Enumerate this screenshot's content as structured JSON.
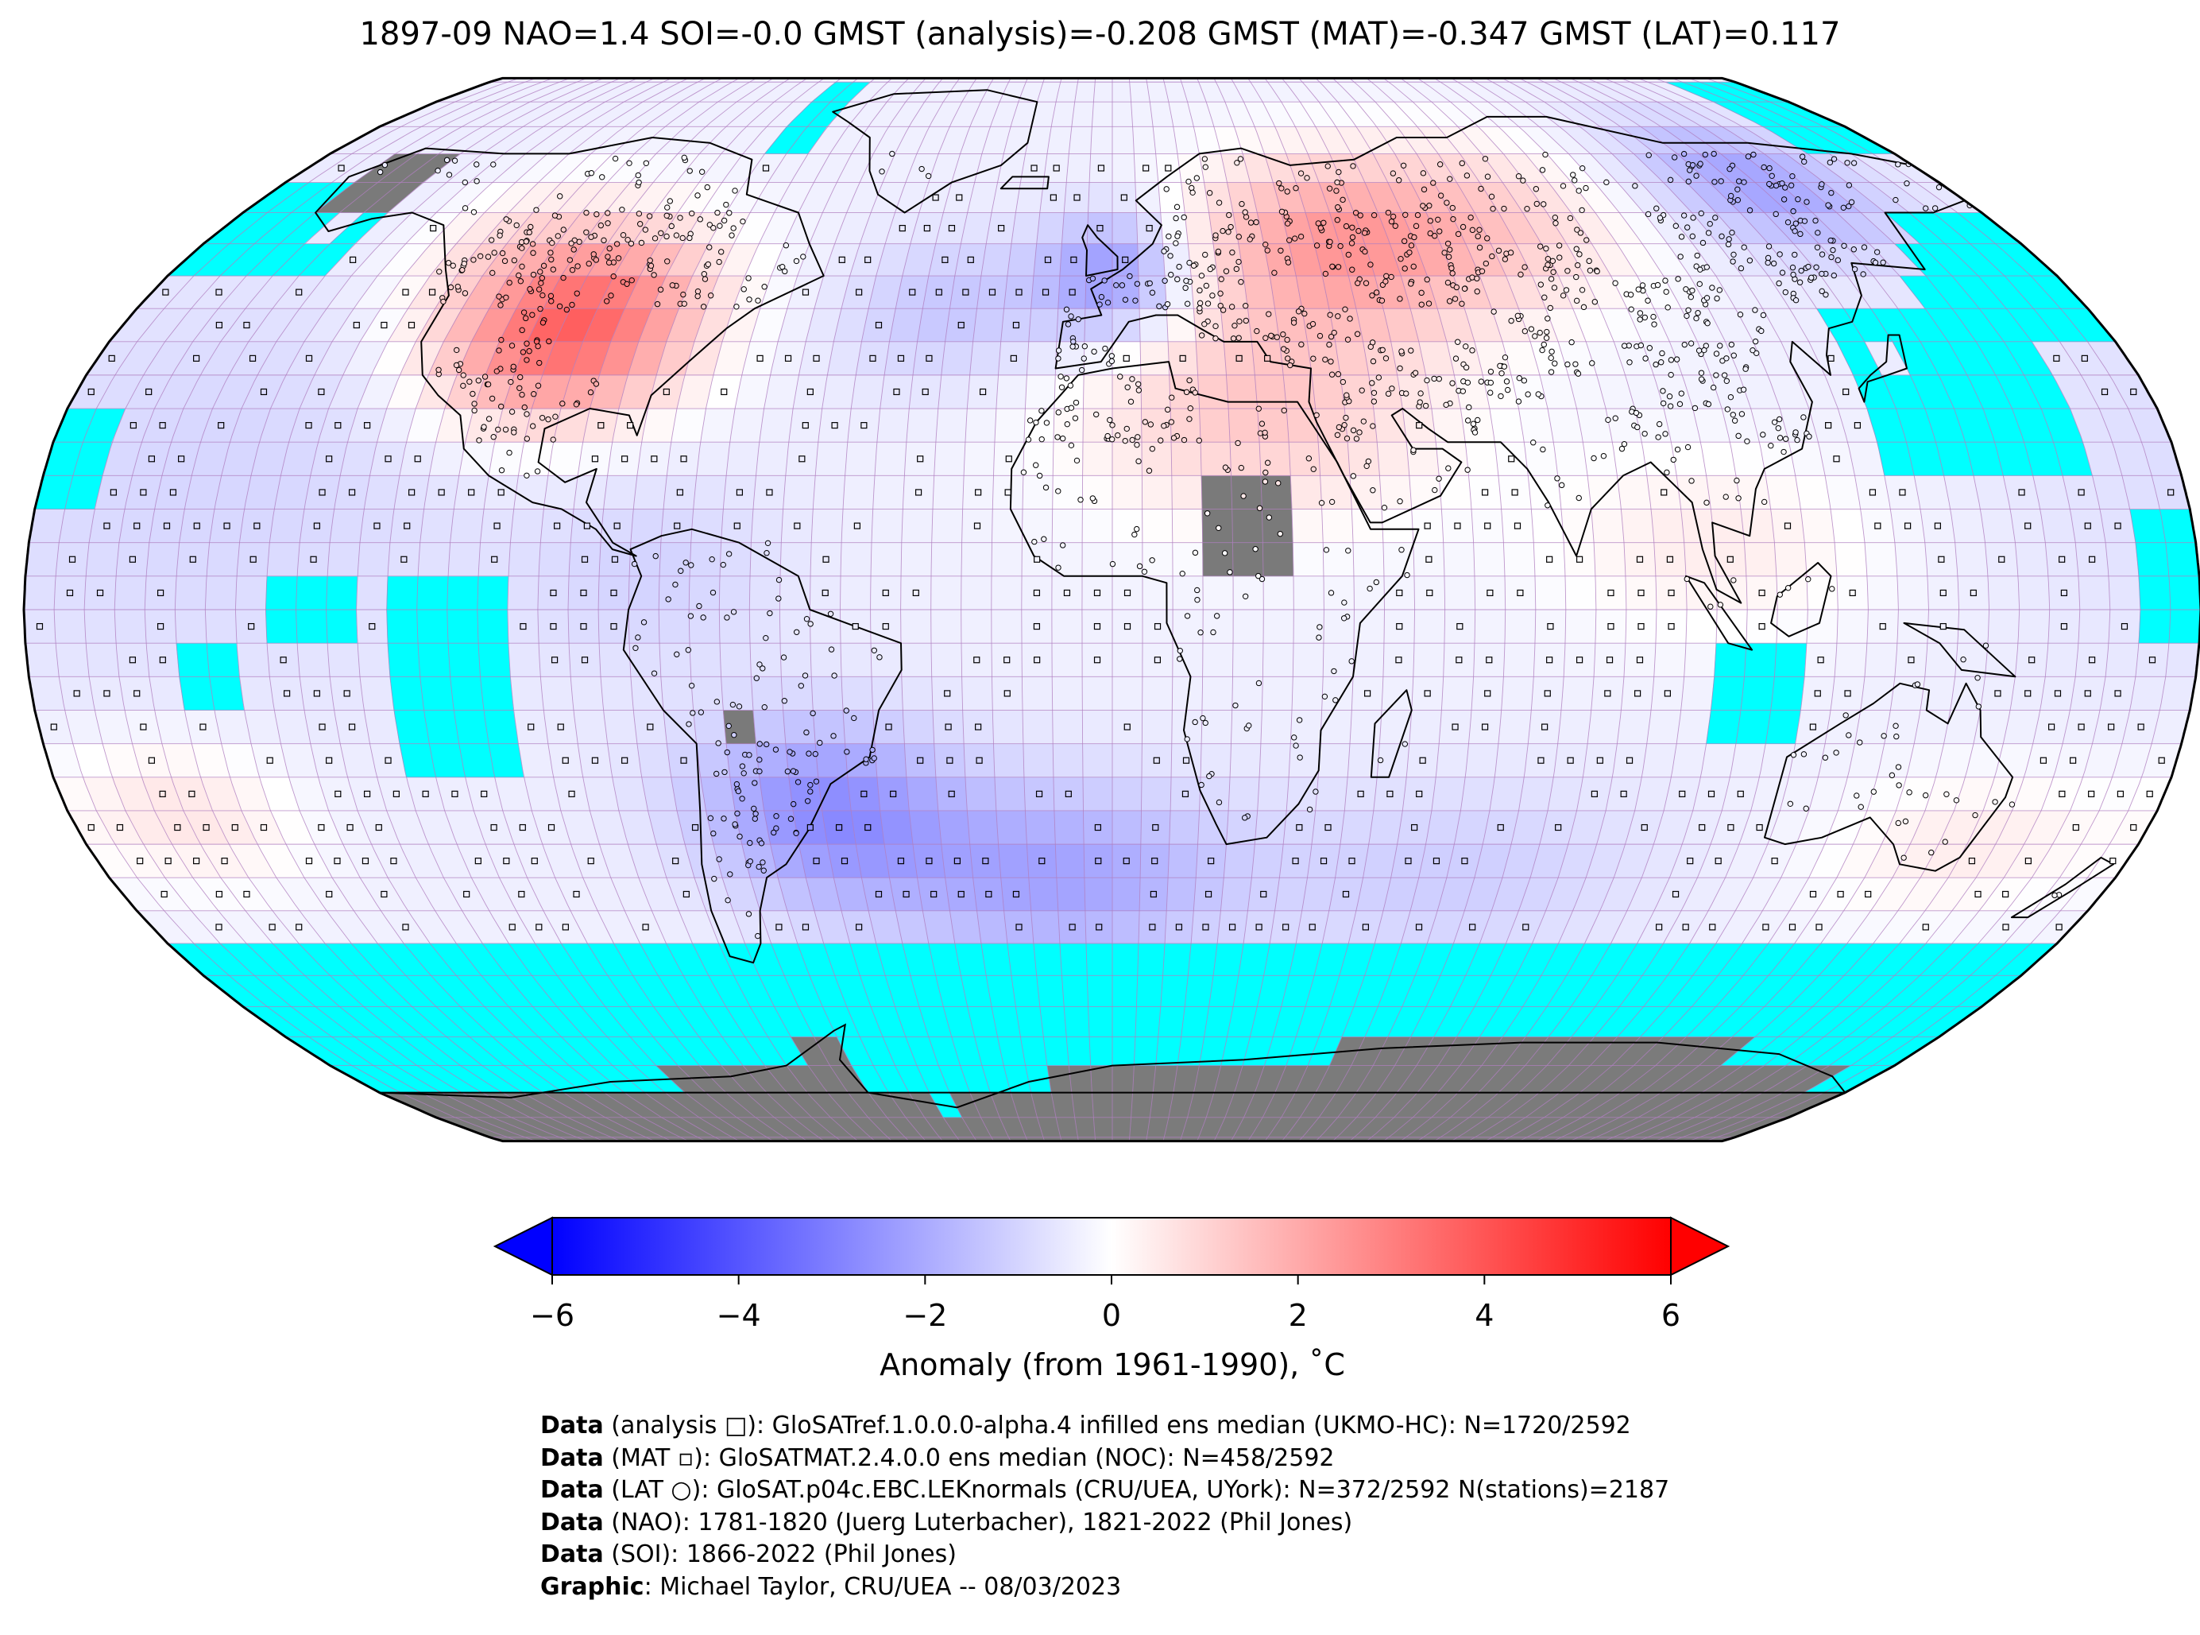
{
  "title": "1897-09 NAO=1.4 SOI=-0.0 GMST (analysis)=-0.208 GMST (MAT)=-0.347 GMST (LAT)=0.117",
  "map": {
    "projection": "Robinson",
    "grid": "5° x 5°",
    "colors": {
      "ocean_missing": "#00ffff",
      "land_missing": "#7a7a7a",
      "antarctica": "#7b7b7b",
      "grid_lines": "#b07fc0",
      "coastline": "#000000"
    },
    "regions": [
      {
        "name": "central-north-america-warm",
        "anomaly": 4.0
      },
      {
        "name": "eastern-europe-western-russia-warm",
        "anomaly": 2.5
      },
      {
        "name": "north-africa-middle-east-warm",
        "anomaly": 1.2
      },
      {
        "name": "western-europe-cool",
        "anomaly": -2.0
      },
      {
        "name": "south-atlantic-cool",
        "anomaly": -1.5
      },
      {
        "name": "southern-south-america-cool",
        "anomaly": -2.0
      },
      {
        "name": "east-siberia-cool",
        "anomaly": -1.5
      }
    ]
  },
  "colorbar": {
    "label": "Anomaly (from 1961-1990), ˚C",
    "ticks": [
      "−6",
      "−4",
      "−2",
      "0",
      "2",
      "4",
      "6"
    ],
    "tick_values": [
      -6,
      -4,
      -2,
      0,
      2,
      4,
      6
    ],
    "min": -6,
    "max": 6,
    "colors": {
      "low": "#0000ff",
      "mid": "#ffffff",
      "high": "#ff0000"
    }
  },
  "credits": [
    {
      "bold": "Data",
      "text": " (analysis □): GloSATref.1.0.0.0-alpha.4 infilled ens median (UKMO-HC): N=1720/2592"
    },
    {
      "bold": "Data",
      "text": " (MAT ▫): GloSATMAT.2.4.0.0 ens median (NOC): N=458/2592"
    },
    {
      "bold": "Data",
      "text": " (LAT ○): GloSAT.p04c.EBC.LEKnormals (CRU/UEA, UYork): N=372/2592 N(stations)=2187"
    },
    {
      "bold": "Data",
      "text": " (NAO): 1781-1820 (Juerg Luterbacher), 1821-2022 (Phil Jones)"
    },
    {
      "bold": "Data",
      "text": " (SOI): 1866-2022 (Phil Jones)"
    },
    {
      "bold": "Graphic",
      "text": ": Michael Taylor, CRU/UEA -- 08/03/2023"
    }
  ]
}
